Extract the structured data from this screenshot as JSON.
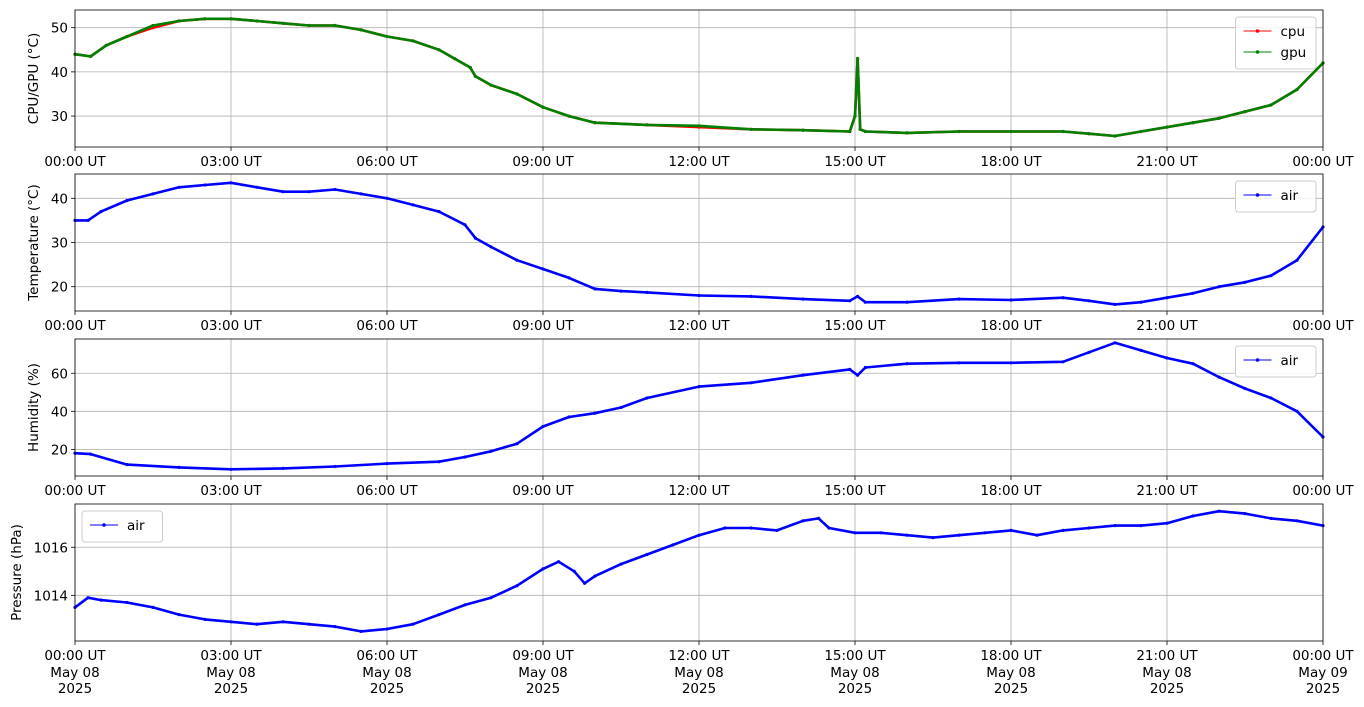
{
  "x_tick_labels": [
    "00:00 UT",
    "03:00 UT",
    "06:00 UT",
    "09:00 UT",
    "12:00 UT",
    "15:00 UT",
    "18:00 UT",
    "21:00 UT",
    "00:00 UT"
  ],
  "x_tick_date_lines": [
    [
      "May 08",
      "2025"
    ],
    [
      "May 08",
      "2025"
    ],
    [
      "May 08",
      "2025"
    ],
    [
      "May 08",
      "2025"
    ],
    [
      "May 08",
      "2025"
    ],
    [
      "May 08",
      "2025"
    ],
    [
      "May 08",
      "2025"
    ],
    [
      "May 08",
      "2025"
    ],
    [
      "May 09",
      "2025"
    ]
  ],
  "colors": {
    "cpu": "#ff0000",
    "gpu": "#008000",
    "air": "#0000ff",
    "grid": "#b0b0b0"
  },
  "chart_data": [
    {
      "type": "line",
      "ylabel": "CPU/GPU (°C)",
      "ylim": [
        23,
        54
      ],
      "yticks": [
        30,
        40,
        50
      ],
      "x_unit": "hours since 2025-05-08 00:00 UT",
      "xlim": [
        0,
        24
      ],
      "grid": true,
      "legend_position": "upper right",
      "series": [
        {
          "name": "cpu",
          "color": "#ff0000",
          "x": [
            0,
            0.3,
            0.6,
            1.0,
            1.5,
            2.0,
            2.5,
            3.0,
            3.5,
            4.0,
            4.5,
            5.0,
            5.5,
            6.0,
            6.5,
            7.0,
            7.3,
            7.6,
            7.7,
            8.0,
            8.5,
            9.0,
            9.5,
            10.0,
            11.0,
            12.0,
            13.0,
            14.0,
            14.9,
            15.0,
            15.05,
            15.1,
            15.2,
            16.0,
            17.0,
            18.0,
            19.0,
            19.5,
            20.0,
            20.5,
            21.0,
            21.5,
            22.0,
            22.5,
            23.0,
            23.5,
            24.0
          ],
          "y": [
            44,
            43.5,
            46,
            48,
            50,
            51.5,
            52,
            52,
            51.5,
            51,
            50.5,
            50.5,
            49.5,
            48,
            47,
            45,
            43,
            41,
            39,
            37,
            35,
            32,
            30,
            28.5,
            28,
            27.5,
            27,
            26.8,
            26.5,
            30,
            43,
            27,
            26.5,
            26.2,
            26.5,
            26.5,
            26.5,
            26,
            25.5,
            26.5,
            27.5,
            28.5,
            29.5,
            31,
            32.5,
            36,
            42
          ]
        },
        {
          "name": "gpu",
          "color": "#008000",
          "x": [
            0,
            0.3,
            0.6,
            1.0,
            1.5,
            2.0,
            2.5,
            3.0,
            3.5,
            4.0,
            4.5,
            5.0,
            5.5,
            6.0,
            6.5,
            7.0,
            7.3,
            7.6,
            7.7,
            8.0,
            8.5,
            9.0,
            9.5,
            10.0,
            11.0,
            12.0,
            13.0,
            14.0,
            14.9,
            15.0,
            15.05,
            15.1,
            15.2,
            16.0,
            17.0,
            18.0,
            19.0,
            19.5,
            20.0,
            20.5,
            21.0,
            21.5,
            22.0,
            22.5,
            23.0,
            23.5,
            24.0
          ],
          "y": [
            44,
            43.5,
            46,
            48,
            50.5,
            51.5,
            52,
            52,
            51.5,
            51,
            50.5,
            50.5,
            49.5,
            48,
            47,
            45,
            43,
            41,
            39,
            37,
            35,
            32,
            30,
            28.5,
            28,
            27.8,
            27,
            26.8,
            26.5,
            30,
            43,
            27,
            26.5,
            26.2,
            26.5,
            26.5,
            26.5,
            26,
            25.5,
            26.5,
            27.5,
            28.5,
            29.5,
            31,
            32.5,
            36,
            42
          ]
        }
      ]
    },
    {
      "type": "line",
      "ylabel": "Temperature (°C)",
      "ylim": [
        14.5,
        45.5
      ],
      "yticks": [
        20,
        30,
        40
      ],
      "x_unit": "hours since 2025-05-08 00:00 UT",
      "xlim": [
        0,
        24
      ],
      "grid": true,
      "legend_position": "upper right",
      "series": [
        {
          "name": "air",
          "color": "#0000ff",
          "x": [
            0,
            0.25,
            0.5,
            1.0,
            1.5,
            2.0,
            2.5,
            3.0,
            3.5,
            4.0,
            4.5,
            5.0,
            5.5,
            6.0,
            6.5,
            7.0,
            7.5,
            7.7,
            8.0,
            8.5,
            9.0,
            9.5,
            10.0,
            10.5,
            11.0,
            12.0,
            13.0,
            14.0,
            14.9,
            15.05,
            15.2,
            16.0,
            17.0,
            18.0,
            19.0,
            19.5,
            20.0,
            20.5,
            21.0,
            21.5,
            22.0,
            22.5,
            23.0,
            23.5,
            24.0
          ],
          "y": [
            35,
            35,
            37,
            39.5,
            41,
            42.5,
            43,
            43.5,
            42.5,
            41.5,
            41.5,
            42,
            41,
            40,
            38.5,
            37,
            34,
            31,
            29,
            26,
            24,
            22,
            19.5,
            19,
            18.7,
            18,
            17.8,
            17.2,
            16.8,
            17.8,
            16.5,
            16.5,
            17.2,
            17,
            17.5,
            16.8,
            16,
            16.5,
            17.5,
            18.5,
            20,
            21,
            22.5,
            26,
            33.5
          ]
        }
      ]
    },
    {
      "type": "line",
      "ylabel": "Humidity (%)",
      "ylim": [
        6,
        78
      ],
      "yticks": [
        20,
        40,
        60
      ],
      "x_unit": "hours since 2025-05-08 00:00 UT",
      "xlim": [
        0,
        24
      ],
      "grid": true,
      "legend_position": "upper right",
      "series": [
        {
          "name": "air",
          "color": "#0000ff",
          "x": [
            0,
            0.3,
            1.0,
            2.0,
            3.0,
            4.0,
            5.0,
            6.0,
            7.0,
            7.5,
            8.0,
            8.5,
            9.0,
            9.5,
            10.0,
            10.5,
            11.0,
            12.0,
            13.0,
            14.0,
            14.9,
            15.05,
            15.2,
            16.0,
            17.0,
            18.0,
            19.0,
            19.5,
            20.0,
            20.5,
            21.0,
            21.5,
            22.0,
            22.5,
            23.0,
            23.5,
            24.0
          ],
          "y": [
            18,
            17.5,
            12,
            10.5,
            9.5,
            10,
            11,
            12.5,
            13.5,
            16,
            19,
            23,
            32,
            37,
            39,
            42,
            47,
            53,
            55,
            59,
            62,
            59,
            63,
            65,
            65.5,
            65.5,
            66,
            71,
            76,
            72,
            68,
            65,
            58,
            52,
            47,
            40,
            26.5
          ]
        }
      ]
    },
    {
      "type": "line",
      "ylabel": "Pressure (hPa)",
      "ylim": [
        1012.1,
        1017.8
      ],
      "yticks": [
        1014,
        1016
      ],
      "x_unit": "hours since 2025-05-08 00:00 UT",
      "xlim": [
        0,
        24
      ],
      "grid": true,
      "legend_position": "upper left",
      "series": [
        {
          "name": "air",
          "color": "#0000ff",
          "x": [
            0,
            0.25,
            0.5,
            1.0,
            1.5,
            2.0,
            2.5,
            3.0,
            3.5,
            4.0,
            4.5,
            5.0,
            5.5,
            6.0,
            6.5,
            7.0,
            7.5,
            8.0,
            8.5,
            9.0,
            9.3,
            9.6,
            9.8,
            10.0,
            10.5,
            11.0,
            11.5,
            12.0,
            12.5,
            13.0,
            13.5,
            14.0,
            14.3,
            14.5,
            15.0,
            15.5,
            16.0,
            16.5,
            17.0,
            17.5,
            18.0,
            18.5,
            19.0,
            19.5,
            20.0,
            20.5,
            21.0,
            21.5,
            22.0,
            22.5,
            23.0,
            23.5,
            24.0
          ],
          "y": [
            1013.5,
            1013.9,
            1013.8,
            1013.7,
            1013.5,
            1013.2,
            1013,
            1012.9,
            1012.8,
            1012.9,
            1012.8,
            1012.7,
            1012.5,
            1012.6,
            1012.8,
            1013.2,
            1013.6,
            1013.9,
            1014.4,
            1015.1,
            1015.4,
            1015,
            1014.5,
            1014.8,
            1015.3,
            1015.7,
            1016.1,
            1016.5,
            1016.8,
            1016.8,
            1016.7,
            1017.1,
            1017.2,
            1016.8,
            1016.6,
            1016.6,
            1016.5,
            1016.4,
            1016.5,
            1016.6,
            1016.7,
            1016.5,
            1016.7,
            1016.8,
            1016.9,
            1016.9,
            1017,
            1017.3,
            1017.5,
            1017.4,
            1017.2,
            1017.1,
            1016.9
          ]
        }
      ]
    }
  ]
}
